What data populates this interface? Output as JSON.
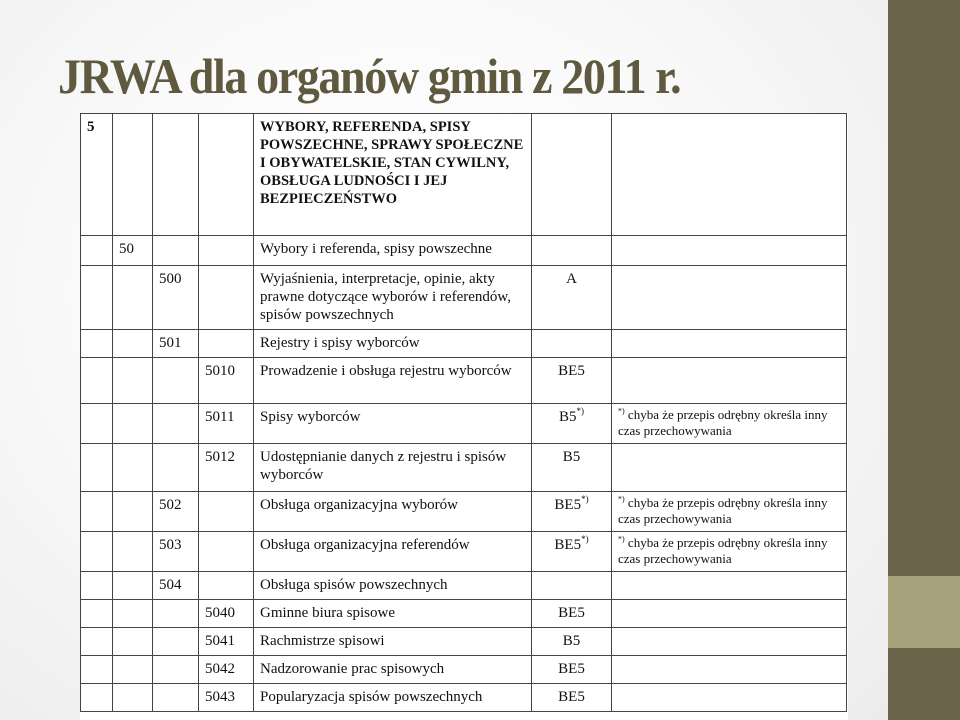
{
  "slide": {
    "title": "JRWA dla organów gmin z 2011 r.",
    "colors": {
      "accent_dark": "#6b644a",
      "accent_light": "#a8a27c",
      "title": "#5f5a3f"
    }
  },
  "table": {
    "rows": [
      {
        "l1": "5",
        "l2": "",
        "l3": "",
        "l4": "",
        "name": "WYBORY, REFERENDA, SPISY POWSZECHNE, SPRAWY SPOŁECZNE I OBYWATELSKIE, STAN CYWILNY, OBSŁUGA LUDNOŚCI I JEJ BEZPIECZEŃSTWO",
        "category": "",
        "category_mark": "",
        "note_mark": "",
        "note": ""
      },
      {
        "l1": "",
        "l2": "50",
        "l3": "",
        "l4": "",
        "name": "Wybory i referenda, spisy powszechne",
        "category": "",
        "category_mark": "",
        "note_mark": "",
        "note": ""
      },
      {
        "l1": "",
        "l2": "",
        "l3": "500",
        "l4": "",
        "name": "Wyjaśnienia, interpretacje, opinie, akty prawne dotyczące wyborów i referendów, spisów powszechnych",
        "category": "A",
        "category_mark": "",
        "note_mark": "",
        "note": ""
      },
      {
        "l1": "",
        "l2": "",
        "l3": "501",
        "l4": "",
        "name": "Rejestry i spisy wyborców",
        "category": "",
        "category_mark": "",
        "note_mark": "",
        "note": ""
      },
      {
        "l1": "",
        "l2": "",
        "l3": "",
        "l4": "5010",
        "name": "Prowadzenie i obsługa rejestru wyborców",
        "category": "BE5",
        "category_mark": "",
        "note_mark": "",
        "note": ""
      },
      {
        "l1": "",
        "l2": "",
        "l3": "",
        "l4": "5011",
        "name": "Spisy wyborców",
        "category": "B5",
        "category_mark": "*)",
        "note_mark": "*)",
        "note": " chyba że przepis odrębny określa inny czas przechowywania"
      },
      {
        "l1": "",
        "l2": "",
        "l3": "",
        "l4": "5012",
        "name": "Udostępnianie danych z rejestru i spisów wyborców",
        "category": "B5",
        "category_mark": "",
        "note_mark": "",
        "note": ""
      },
      {
        "l1": "",
        "l2": "",
        "l3": "502",
        "l4": "",
        "name": "Obsługa organizacyjna wyborów",
        "category": "BE5",
        "category_mark": "*)",
        "note_mark": "*)",
        "note": " chyba że przepis odrębny określa inny czas przechowywania"
      },
      {
        "l1": "",
        "l2": "",
        "l3": "503",
        "l4": "",
        "name": "Obsługa organizacyjna referendów",
        "category": "BE5",
        "category_mark": "*)",
        "note_mark": "*)",
        "note": " chyba że przepis odrębny określa inny czas przechowywania"
      },
      {
        "l1": "",
        "l2": "",
        "l3": "504",
        "l4": "",
        "name": "Obsługa spisów powszechnych",
        "category": "",
        "category_mark": "",
        "note_mark": "",
        "note": ""
      },
      {
        "l1": "",
        "l2": "",
        "l3": "",
        "l4": "5040",
        "name": "Gminne biura spisowe",
        "category": "BE5",
        "category_mark": "",
        "note_mark": "",
        "note": ""
      },
      {
        "l1": "",
        "l2": "",
        "l3": "",
        "l4": "5041",
        "name": "Rachmistrze spisowi",
        "category": "B5",
        "category_mark": "",
        "note_mark": "",
        "note": ""
      },
      {
        "l1": "",
        "l2": "",
        "l3": "",
        "l4": "5042",
        "name": "Nadzorowanie prac spisowych",
        "category": "BE5",
        "category_mark": "",
        "note_mark": "",
        "note": ""
      },
      {
        "l1": "",
        "l2": "",
        "l3": "",
        "l4": "5043",
        "name": "Popularyzacja spisów powszechnych",
        "category": "BE5",
        "category_mark": "",
        "note_mark": "",
        "note": ""
      }
    ]
  }
}
